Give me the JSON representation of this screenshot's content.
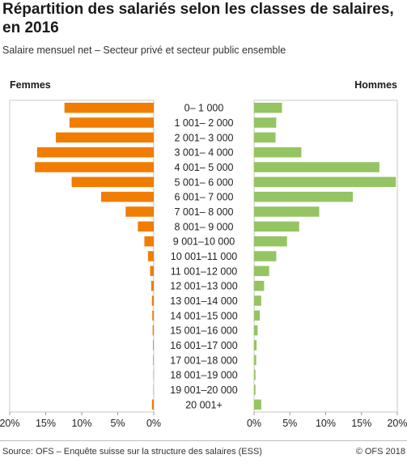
{
  "title": "Répartition des salariés selon les classes de salaires, en 2016",
  "subtitle": "Salaire mensuel net – Secteur privé et secteur public ensemble",
  "source": "Source: OFS – Enquête suisse sur la structure des salaires (ESS)",
  "copyright": "© OFS 2018",
  "chart_data": {
    "type": "bar",
    "orientation": "horizontal",
    "layout": "population-pyramid",
    "categories": [
      "0– 1 000",
      "1 001– 2 000",
      "2 001– 3 000",
      "3 001– 4 000",
      "4 001– 5 000",
      "5 001– 6 000",
      "6 001– 7 000",
      "7 001– 8 000",
      "8 001– 9 000",
      "9 001–10 000",
      "10 001–11 000",
      "11 001–12 000",
      "12 001–13 000",
      "13 001–14 000",
      "14 001–15 000",
      "15 001–16 000",
      "16 001–17 000",
      "17 001–18 000",
      "18 001–19 000",
      "19 001–20 000",
      "20 001+"
    ],
    "series": [
      {
        "name": "Femmes",
        "color": "#f07d00",
        "side": "left",
        "values": [
          12.4,
          11.7,
          13.6,
          16.2,
          16.5,
          11.4,
          7.3,
          3.9,
          2.2,
          1.3,
          0.8,
          0.5,
          0.35,
          0.25,
          0.2,
          0.15,
          0.1,
          0.08,
          0.05,
          0.05,
          0.25
        ]
      },
      {
        "name": "Hommes",
        "color": "#95c463",
        "side": "right",
        "values": [
          3.9,
          3.1,
          3.0,
          6.6,
          17.5,
          19.8,
          13.8,
          9.1,
          6.3,
          4.6,
          3.1,
          2.1,
          1.4,
          1.0,
          0.8,
          0.5,
          0.35,
          0.3,
          0.2,
          0.2,
          1.0
        ]
      }
    ],
    "ticks": [
      0,
      5,
      10,
      15,
      20
    ],
    "tick_labels": [
      "0%",
      "5%",
      "10%",
      "15%",
      "20%"
    ],
    "xlim": [
      0,
      20
    ],
    "xlabel": "",
    "ylabel": "",
    "grid": false,
    "legend": "top-left and top-right"
  }
}
